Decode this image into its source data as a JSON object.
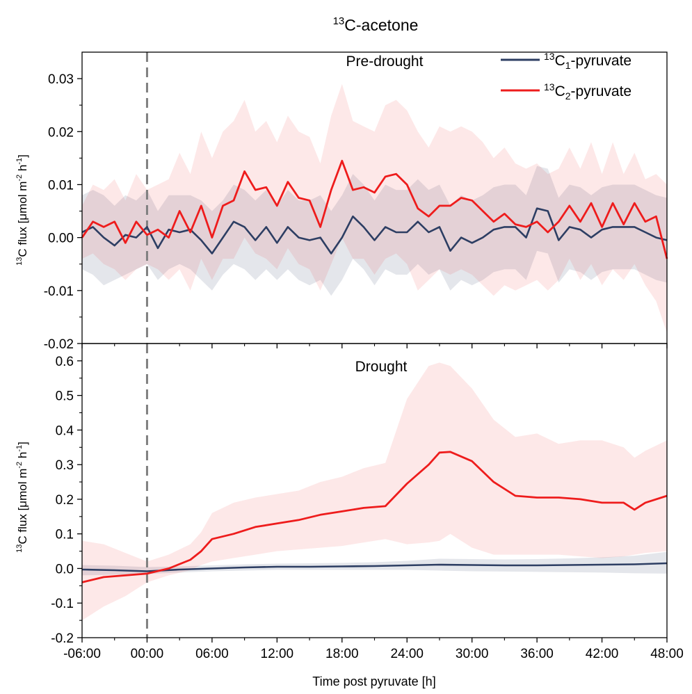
{
  "title_text": "C-acetone",
  "title_sup": "13",
  "xlabel": "Time post pyruvate [h]",
  "ylabel": {
    "pre": "C",
    "mid": " flux [μmol m",
    "exp1": "-2",
    "mid2": " h",
    "exp2": "-1",
    "post": "]"
  },
  "legend": [
    {
      "prefix_sup": "13",
      "pre": "C",
      "sub": "1",
      "post": "-pyruvate",
      "color": "#2d3e63"
    },
    {
      "prefix_sup": "13",
      "pre": "C",
      "sub": "2",
      "post": "-pyruvate",
      "color": "#ee1c1c"
    }
  ],
  "chart_data": [
    {
      "type": "line",
      "title": "Pre-drought",
      "xlim": [
        -6,
        48
      ],
      "ylim": [
        -0.02,
        0.035
      ],
      "x_ticks": [
        -6,
        0,
        6,
        12,
        18,
        24,
        30,
        36,
        42,
        48
      ],
      "x_tick_labels": [
        "-06:00",
        "00:00",
        "06:00",
        "12:00",
        "18:00",
        "24:00",
        "30:00",
        "36:00",
        "42:00",
        "48:00"
      ],
      "y_ticks": [
        -0.02,
        -0.01,
        0.0,
        0.01,
        0.02,
        0.03
      ],
      "y_tick_labels": [
        "-0.02",
        "-0.01",
        "0.00",
        "0.01",
        "0.02",
        "0.03"
      ],
      "vline_x": 0,
      "series": [
        {
          "name": "13C1-pyruvate",
          "color": "#2d3e63",
          "x": [
            -6,
            -5,
            -4,
            -3,
            -2,
            -1,
            0,
            1,
            2,
            3,
            4,
            5,
            6,
            7,
            8,
            9,
            10,
            11,
            12,
            13,
            14,
            15,
            16,
            17,
            18,
            19,
            20,
            21,
            22,
            23,
            24,
            25,
            26,
            27,
            28,
            29,
            30,
            31,
            32,
            33,
            34,
            35,
            36,
            37,
            38,
            39,
            40,
            41,
            42,
            43,
            44,
            45,
            46,
            47,
            48
          ],
          "y": [
            0.001,
            0.002,
            0.0,
            -0.0015,
            0.0005,
            0.0,
            0.002,
            -0.002,
            0.0015,
            0.001,
            0.0015,
            -0.0005,
            -0.003,
            0.0,
            0.003,
            0.002,
            -0.0005,
            0.002,
            -0.001,
            0.002,
            0.0,
            -0.0005,
            0.0,
            -0.003,
            0.0,
            0.004,
            0.002,
            -0.0005,
            0.002,
            0.001,
            0.001,
            0.003,
            0.001,
            0.002,
            -0.0025,
            0.0,
            -0.001,
            0.0,
            0.0015,
            0.002,
            0.002,
            0.0,
            0.0055,
            0.005,
            -0.0005,
            0.002,
            0.0015,
            0.0,
            0.0015,
            0.002,
            0.002,
            0.002,
            0.001,
            0.0,
            -0.0005
          ],
          "lower": [
            -0.006,
            -0.007,
            -0.009,
            -0.008,
            -0.007,
            -0.006,
            -0.005,
            -0.008,
            -0.006,
            -0.005,
            -0.006,
            -0.008,
            -0.01,
            -0.007,
            -0.005,
            -0.006,
            -0.008,
            -0.006,
            -0.008,
            -0.006,
            -0.008,
            -0.009,
            -0.008,
            -0.011,
            -0.008,
            -0.004,
            -0.006,
            -0.009,
            -0.006,
            -0.007,
            -0.007,
            -0.005,
            -0.007,
            -0.006,
            -0.01,
            -0.008,
            -0.009,
            -0.008,
            -0.0065,
            -0.006,
            -0.006,
            -0.008,
            -0.0025,
            -0.003,
            -0.0085,
            -0.006,
            -0.0065,
            -0.008,
            -0.0065,
            -0.006,
            -0.006,
            -0.006,
            -0.007,
            -0.008,
            -0.0085
          ],
          "upper": [
            0.008,
            0.009,
            0.008,
            0.006,
            0.008,
            0.007,
            0.009,
            0.005,
            0.008,
            0.008,
            0.008,
            0.007,
            0.005,
            0.007,
            0.01,
            0.009,
            0.007,
            0.009,
            0.006,
            0.009,
            0.007,
            0.007,
            0.008,
            0.005,
            0.008,
            0.012,
            0.01,
            0.007,
            0.01,
            0.009,
            0.009,
            0.011,
            0.009,
            0.01,
            0.006,
            0.008,
            0.007,
            0.008,
            0.0095,
            0.01,
            0.01,
            0.008,
            0.0135,
            0.013,
            0.0075,
            0.01,
            0.0095,
            0.008,
            0.0095,
            0.01,
            0.01,
            0.01,
            0.009,
            0.008,
            0.0075
          ]
        },
        {
          "name": "13C2-pyruvate",
          "color": "#ee1c1c",
          "x": [
            -6,
            -5,
            -4,
            -3,
            -2,
            -1,
            0,
            1,
            2,
            3,
            4,
            5,
            6,
            7,
            8,
            9,
            10,
            11,
            12,
            13,
            14,
            15,
            16,
            17,
            18,
            19,
            20,
            21,
            22,
            23,
            24,
            25,
            26,
            27,
            28,
            29,
            30,
            31,
            32,
            33,
            34,
            35,
            36,
            37,
            38,
            39,
            40,
            41,
            42,
            43,
            44,
            45,
            46,
            47,
            48
          ],
          "y": [
            0.0,
            0.003,
            0.002,
            0.003,
            -0.001,
            0.003,
            0.0005,
            0.0015,
            0.0,
            0.005,
            0.001,
            0.006,
            0.0,
            0.006,
            0.007,
            0.0125,
            0.009,
            0.0095,
            0.006,
            0.0105,
            0.0075,
            0.007,
            0.002,
            0.009,
            0.0145,
            0.009,
            0.0095,
            0.0085,
            0.0115,
            0.012,
            0.01,
            0.0055,
            0.004,
            0.006,
            0.006,
            0.0075,
            0.007,
            0.005,
            0.003,
            0.0045,
            0.0025,
            0.002,
            0.003,
            0.001,
            0.003,
            0.006,
            0.003,
            0.0065,
            0.002,
            0.0065,
            0.0025,
            0.0065,
            0.003,
            0.004,
            -0.004
          ],
          "lower": [
            -0.004,
            -0.003,
            -0.005,
            -0.006,
            -0.008,
            -0.006,
            -0.005,
            -0.006,
            -0.008,
            -0.006,
            -0.01,
            -0.004,
            -0.008,
            -0.004,
            -0.004,
            0.0,
            -0.003,
            -0.004,
            -0.006,
            -0.002,
            -0.005,
            -0.006,
            -0.01,
            -0.005,
            0.0,
            -0.004,
            -0.004,
            -0.007,
            -0.004,
            -0.003,
            -0.005,
            -0.01,
            -0.008,
            -0.006,
            -0.007,
            -0.006,
            -0.007,
            -0.009,
            -0.011,
            -0.009,
            -0.01,
            -0.009,
            -0.008,
            -0.01,
            -0.008,
            -0.004,
            -0.008,
            -0.005,
            -0.009,
            -0.006,
            -0.008,
            -0.005,
            -0.009,
            -0.012,
            -0.018
          ],
          "upper": [
            0.006,
            0.01,
            0.009,
            0.011,
            0.007,
            0.012,
            0.009,
            0.01,
            0.011,
            0.016,
            0.012,
            0.02,
            0.015,
            0.02,
            0.022,
            0.026,
            0.02,
            0.022,
            0.018,
            0.023,
            0.02,
            0.019,
            0.014,
            0.023,
            0.029,
            0.022,
            0.021,
            0.02,
            0.025,
            0.026,
            0.024,
            0.02,
            0.017,
            0.021,
            0.02,
            0.021,
            0.02,
            0.018,
            0.015,
            0.017,
            0.014,
            0.013,
            0.014,
            0.012,
            0.013,
            0.017,
            0.013,
            0.018,
            0.012,
            0.018,
            0.012,
            0.016,
            0.011,
            0.012,
            0.01
          ]
        }
      ]
    },
    {
      "type": "line",
      "title": "Drought",
      "xlim": [
        -6,
        48
      ],
      "ylim": [
        -0.2,
        0.65
      ],
      "x_ticks": [
        -6,
        0,
        6,
        12,
        18,
        24,
        30,
        36,
        42,
        48
      ],
      "x_tick_labels": [
        "-06:00",
        "00:00",
        "06:00",
        "12:00",
        "18:00",
        "24:00",
        "30:00",
        "36:00",
        "42:00",
        "48:00"
      ],
      "y_ticks": [
        -0.2,
        -0.1,
        0.0,
        0.1,
        0.2,
        0.3,
        0.4,
        0.5,
        0.6
      ],
      "y_tick_labels": [
        "-0.2",
        "-0.1",
        "0.0",
        "0.1",
        "0.2",
        "0.3",
        "0.4",
        "0.5",
        "0.6"
      ],
      "vline_x": 0,
      "series": [
        {
          "name": "13C1-pyruvate",
          "color": "#2d3e63",
          "x": [
            -6,
            -3,
            0,
            3,
            6,
            9,
            12,
            15,
            18,
            21,
            24,
            27,
            30,
            33,
            36,
            39,
            42,
            45,
            48
          ],
          "y": [
            -0.003,
            -0.005,
            -0.008,
            -0.003,
            0.0,
            0.003,
            0.005,
            0.005,
            0.006,
            0.007,
            0.009,
            0.011,
            0.01,
            0.009,
            0.009,
            0.01,
            0.011,
            0.012,
            0.015
          ],
          "lower": [
            -0.02,
            -0.018,
            -0.016,
            -0.012,
            -0.008,
            -0.006,
            -0.004,
            -0.004,
            -0.004,
            -0.004,
            -0.004,
            -0.006,
            -0.008,
            -0.009,
            -0.01,
            -0.011,
            -0.012,
            -0.014,
            -0.015
          ],
          "upper": [
            0.01,
            0.008,
            0.004,
            0.006,
            0.009,
            0.012,
            0.014,
            0.015,
            0.016,
            0.018,
            0.022,
            0.028,
            0.027,
            0.026,
            0.027,
            0.029,
            0.032,
            0.037,
            0.048
          ]
        },
        {
          "name": "13C2-pyruvate",
          "color": "#ee1c1c",
          "x": [
            -6,
            -4,
            -2,
            0,
            2,
            4,
            5,
            6,
            8,
            10,
            12,
            14,
            16,
            18,
            20,
            22,
            24,
            26,
            27,
            28,
            30,
            32,
            34,
            36,
            38,
            40,
            42,
            44,
            45,
            46,
            48
          ],
          "y": [
            -0.04,
            -0.025,
            -0.02,
            -0.015,
            0.0,
            0.025,
            0.05,
            0.085,
            0.1,
            0.12,
            0.13,
            0.14,
            0.155,
            0.165,
            0.175,
            0.18,
            0.245,
            0.3,
            0.335,
            0.337,
            0.31,
            0.25,
            0.21,
            0.205,
            0.205,
            0.2,
            0.19,
            0.19,
            0.17,
            0.19,
            0.21
          ],
          "lower": [
            -0.15,
            -0.11,
            -0.08,
            -0.04,
            -0.02,
            -0.005,
            0.01,
            0.02,
            0.03,
            0.04,
            0.05,
            0.055,
            0.06,
            0.065,
            0.075,
            0.085,
            0.07,
            0.075,
            0.08,
            0.1,
            0.06,
            0.04,
            0.04,
            0.04,
            0.04,
            0.035,
            0.03,
            0.035,
            0.04,
            0.045,
            0.05
          ],
          "upper": [
            0.08,
            0.07,
            0.045,
            0.02,
            0.04,
            0.07,
            0.105,
            0.16,
            0.19,
            0.205,
            0.215,
            0.225,
            0.25,
            0.265,
            0.29,
            0.305,
            0.49,
            0.585,
            0.595,
            0.585,
            0.52,
            0.43,
            0.38,
            0.39,
            0.36,
            0.37,
            0.37,
            0.35,
            0.32,
            0.34,
            0.37
          ]
        }
      ]
    }
  ]
}
